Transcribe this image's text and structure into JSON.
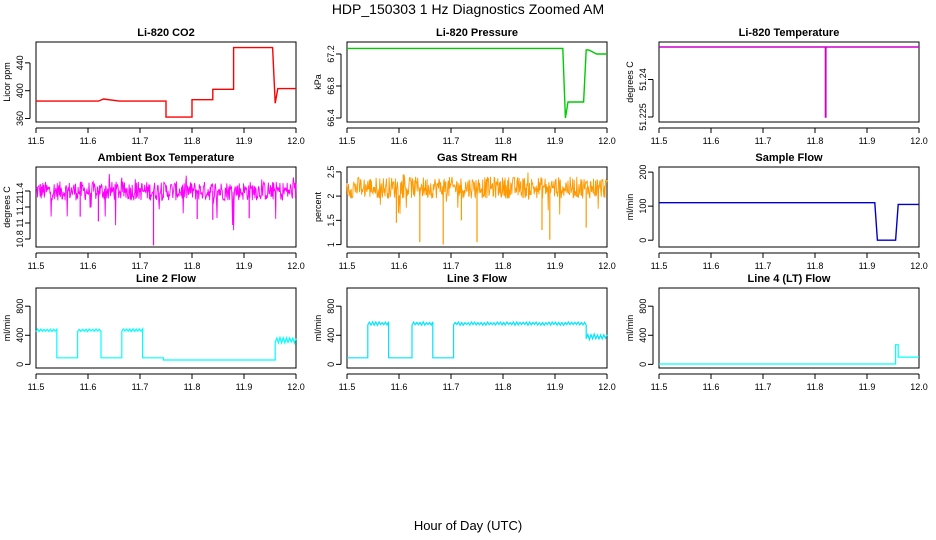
{
  "page_title": "HDP_150303  1 Hz Diagnostics Zoomed AM",
  "x_axis_title": "Hour of Day (UTC)",
  "chart_data": [
    {
      "type": "line",
      "title": "Li-820 CO2",
      "ylabel": "Licor ppm",
      "color": "#ff0000",
      "xlim": [
        11.5,
        12.0
      ],
      "ylim": [
        355,
        470
      ],
      "xticks": [
        11.5,
        11.6,
        11.7,
        11.8,
        11.9,
        12.0
      ],
      "yticks": [
        360,
        400,
        440
      ],
      "x": [
        11.5,
        11.62,
        11.63,
        11.66,
        11.75,
        11.75,
        11.8,
        11.8,
        11.84,
        11.84,
        11.88,
        11.88,
        11.955,
        11.96,
        11.965,
        12.0
      ],
      "y": [
        385,
        385,
        388,
        385,
        385,
        362,
        362,
        387,
        387,
        402,
        402,
        462,
        462,
        382,
        403,
        403
      ]
    },
    {
      "type": "line",
      "title": "Li-820 Pressure",
      "ylabel": "kPa",
      "color": "#00cc00",
      "xlim": [
        11.5,
        12.0
      ],
      "ylim": [
        66.35,
        67.35
      ],
      "xticks": [
        11.5,
        11.6,
        11.7,
        11.8,
        11.9,
        12.0
      ],
      "yticks": [
        66.4,
        66.8,
        67.2
      ],
      "x": [
        11.5,
        11.915,
        11.92,
        11.925,
        11.93,
        11.955,
        11.96,
        11.965,
        11.98,
        12.0
      ],
      "y": [
        67.27,
        67.27,
        66.4,
        66.6,
        66.6,
        66.6,
        67.25,
        67.25,
        67.2,
        67.2
      ]
    },
    {
      "type": "line",
      "title": "Li-820 Temperature",
      "ylabel": "degrees C",
      "color": "#cc00cc",
      "xlim": [
        11.5,
        12.0
      ],
      "ylim": [
        51.223,
        51.255
      ],
      "xticks": [
        11.5,
        11.6,
        11.7,
        11.8,
        11.9,
        12.0
      ],
      "yticks": [
        51.225,
        51.24
      ],
      "x": [
        11.5,
        11.82,
        11.82,
        11.821,
        11.821,
        12.0
      ],
      "y": [
        51.253,
        51.253,
        51.225,
        51.225,
        51.253,
        51.253
      ]
    },
    {
      "type": "noise",
      "title": "Ambient Box Temperature",
      "ylabel": "degrees C",
      "color": "#ff00ff",
      "xlim": [
        11.5,
        12.0
      ],
      "ylim": [
        10.7,
        11.7
      ],
      "xticks": [
        11.5,
        11.6,
        11.7,
        11.8,
        11.9,
        12.0
      ],
      "yticks": [
        10.8,
        11.0,
        11.2,
        11.4
      ],
      "band_low": 11.28,
      "band_high": 11.52,
      "spike_low": 10.9,
      "spike_high": 11.62,
      "spikes": [
        {
          "x": 11.726,
          "y": 10.72
        },
        {
          "x": 11.62,
          "y": 11.02
        },
        {
          "x": 11.81,
          "y": 11.05
        },
        {
          "x": 11.585,
          "y": 11.08
        },
        {
          "x": 11.84,
          "y": 11.04
        },
        {
          "x": 11.91,
          "y": 11.06
        }
      ]
    },
    {
      "type": "noise",
      "title": "Gas Stream RH",
      "ylabel": "percent",
      "color": "#ff9900",
      "xlim": [
        11.5,
        12.0
      ],
      "ylim": [
        0.95,
        2.6
      ],
      "xticks": [
        11.5,
        11.6,
        11.7,
        11.8,
        11.9,
        12.0
      ],
      "yticks": [
        1.0,
        1.5,
        2.0,
        2.5
      ],
      "band_low": 1.95,
      "band_high": 2.4,
      "spike_low": 1.6,
      "spike_high": 2.5,
      "spikes": [
        {
          "x": 11.64,
          "y": 1.05
        },
        {
          "x": 11.685,
          "y": 1.0
        },
        {
          "x": 11.75,
          "y": 1.05
        },
        {
          "x": 11.89,
          "y": 1.1
        },
        {
          "x": 11.875,
          "y": 1.3
        },
        {
          "x": 11.595,
          "y": 1.45
        },
        {
          "x": 11.72,
          "y": 1.5
        },
        {
          "x": 11.96,
          "y": 1.35
        }
      ]
    },
    {
      "type": "line",
      "title": "Sample Flow",
      "ylabel": "ml/min",
      "color": "#0000cc",
      "xlim": [
        11.5,
        12.0
      ],
      "ylim": [
        -20,
        215
      ],
      "xticks": [
        11.5,
        11.6,
        11.7,
        11.8,
        11.9,
        12.0
      ],
      "yticks": [
        0,
        100,
        200
      ],
      "x": [
        11.5,
        11.915,
        11.92,
        11.955,
        11.96,
        11.965,
        12.0
      ],
      "y": [
        110,
        110,
        0,
        0,
        105,
        105,
        105
      ]
    },
    {
      "type": "step",
      "title": "Line 2 Flow",
      "ylabel": "ml/min",
      "color": "#00ffff",
      "xlim": [
        11.5,
        12.0
      ],
      "ylim": [
        -50,
        1050
      ],
      "xticks": [
        11.5,
        11.6,
        11.7,
        11.8,
        11.9,
        12.0
      ],
      "yticks": [
        0,
        400,
        800
      ],
      "segments": [
        {
          "x0": 11.5,
          "x1": 11.54,
          "y": 470,
          "noise": 40
        },
        {
          "x0": 11.54,
          "x1": 11.58,
          "y": 90,
          "noise": 0
        },
        {
          "x0": 11.58,
          "x1": 11.625,
          "y": 470,
          "noise": 40
        },
        {
          "x0": 11.625,
          "x1": 11.665,
          "y": 90,
          "noise": 0
        },
        {
          "x0": 11.665,
          "x1": 11.705,
          "y": 470,
          "noise": 40
        },
        {
          "x0": 11.705,
          "x1": 11.745,
          "y": 90,
          "noise": 0
        },
        {
          "x0": 11.745,
          "x1": 11.96,
          "y": 60,
          "noise": 0
        },
        {
          "x0": 11.96,
          "x1": 12.0,
          "y": 330,
          "noise": 80
        }
      ]
    },
    {
      "type": "step",
      "title": "Line 3 Flow",
      "ylabel": "ml/min",
      "color": "#00e5ff",
      "xlim": [
        11.5,
        12.0
      ],
      "ylim": [
        -50,
        1050
      ],
      "xticks": [
        11.5,
        11.6,
        11.7,
        11.8,
        11.9,
        12.0
      ],
      "yticks": [
        0,
        400,
        800
      ],
      "segments": [
        {
          "x0": 11.5,
          "x1": 11.54,
          "y": 90,
          "noise": 0
        },
        {
          "x0": 11.54,
          "x1": 11.58,
          "y": 560,
          "noise": 50
        },
        {
          "x0": 11.58,
          "x1": 11.625,
          "y": 90,
          "noise": 0
        },
        {
          "x0": 11.625,
          "x1": 11.665,
          "y": 560,
          "noise": 50
        },
        {
          "x0": 11.665,
          "x1": 11.705,
          "y": 90,
          "noise": 0
        },
        {
          "x0": 11.705,
          "x1": 11.96,
          "y": 560,
          "noise": 45
        },
        {
          "x0": 11.96,
          "x1": 12.0,
          "y": 380,
          "noise": 80
        }
      ]
    },
    {
      "type": "step",
      "title": "Line 4 (LT) Flow",
      "ylabel": "ml/min",
      "color": "#00ffff",
      "xlim": [
        11.5,
        12.0
      ],
      "ylim": [
        -50,
        1050
      ],
      "xticks": [
        11.5,
        11.6,
        11.7,
        11.8,
        11.9,
        12.0
      ],
      "yticks": [
        0,
        400,
        800
      ],
      "segments": [
        {
          "x0": 11.5,
          "x1": 11.955,
          "y": 5,
          "noise": 0
        },
        {
          "x0": 11.955,
          "x1": 11.96,
          "y": 270,
          "noise": 0
        },
        {
          "x0": 11.96,
          "x1": 12.0,
          "y": 100,
          "noise": 0
        }
      ]
    }
  ]
}
